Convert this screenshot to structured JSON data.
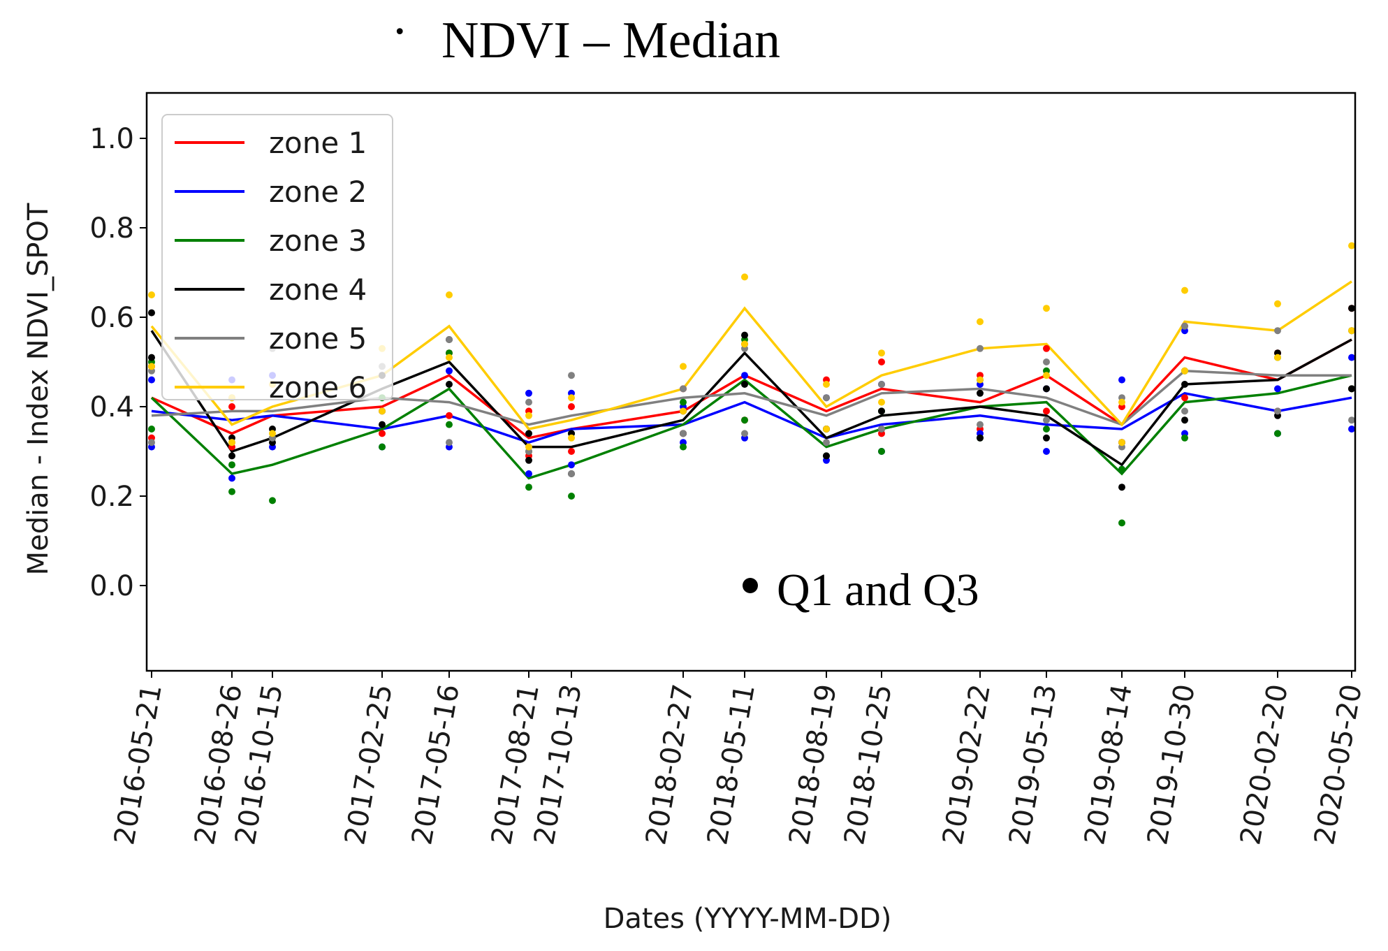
{
  "chart_data": {
    "type": "line",
    "title": "NDVI – Median",
    "title_prefix": ".",
    "xlabel": "Dates (YYYY-MM-DD)",
    "ylabel": "Median - Index NDVI_SPOT",
    "ylim": [
      -0.2,
      1.1
    ],
    "yticks": [
      0.0,
      0.2,
      0.4,
      0.6,
      0.8,
      1.0
    ],
    "ytick_labels": [
      "0.0",
      "0.2",
      "0.4",
      "0.6",
      "0.8",
      "1.0"
    ],
    "legend_position": "top-left",
    "annotation": "Q1 and Q3",
    "annotation_marker_color": "#000000",
    "x_dates": [
      "2016-05-21",
      "2016-08-26",
      "2016-10-15",
      "2017-02-25",
      "2017-05-16",
      "2017-08-21",
      "2017-10-13",
      "2018-02-27",
      "2018-05-11",
      "2018-08-19",
      "2018-10-25",
      "2019-02-22",
      "2019-05-13",
      "2019-08-14",
      "2019-10-30",
      "2020-02-20",
      "2020-05-20"
    ],
    "series": [
      {
        "name": "zone 1",
        "color": "#ff0000",
        "values": [
          0.42,
          0.34,
          0.38,
          0.4,
          0.47,
          0.33,
          0.35,
          0.39,
          0.47,
          0.39,
          0.44,
          0.41,
          0.47,
          0.36,
          0.51,
          0.46,
          0.55
        ],
        "q1": [
          0.33,
          0.31,
          0.33,
          0.34,
          0.38,
          0.29,
          0.3,
          0.34,
          0.37,
          0.35,
          0.34,
          0.35,
          0.39,
          0.32,
          0.42,
          0.39,
          0.44
        ],
        "q3": [
          0.49,
          0.4,
          0.45,
          0.47,
          0.52,
          0.39,
          0.4,
          0.44,
          0.54,
          0.46,
          0.5,
          0.47,
          0.53,
          0.4,
          0.58,
          0.52,
          0.62
        ]
      },
      {
        "name": "zone 2",
        "color": "#0000ff",
        "values": [
          0.39,
          0.37,
          0.38,
          0.35,
          0.38,
          0.32,
          0.35,
          0.36,
          0.41,
          0.33,
          0.36,
          0.38,
          0.36,
          0.35,
          0.43,
          0.39,
          0.42
        ],
        "q1": [
          0.31,
          0.24,
          0.31,
          0.31,
          0.31,
          0.25,
          0.27,
          0.32,
          0.33,
          0.28,
          0.3,
          0.34,
          0.3,
          0.26,
          0.34,
          0.34,
          0.35
        ],
        "q3": [
          0.46,
          0.46,
          0.47,
          0.39,
          0.48,
          0.43,
          0.43,
          0.4,
          0.47,
          0.42,
          0.45,
          0.45,
          0.44,
          0.46,
          0.57,
          0.44,
          0.51
        ]
      },
      {
        "name": "zone 3",
        "color": "#008000",
        "values": [
          0.42,
          0.25,
          0.27,
          0.35,
          0.44,
          0.24,
          0.27,
          0.36,
          0.46,
          0.31,
          0.35,
          0.4,
          0.41,
          0.25,
          0.41,
          0.43,
          0.47
        ],
        "q1": [
          0.35,
          0.21,
          0.19,
          0.31,
          0.36,
          0.22,
          0.2,
          0.31,
          0.37,
          0.29,
          0.3,
          0.33,
          0.35,
          0.14,
          0.33,
          0.34,
          0.44
        ],
        "q3": [
          0.5,
          0.27,
          0.33,
          0.42,
          0.52,
          0.3,
          0.34,
          0.41,
          0.55,
          0.35,
          0.39,
          0.46,
          0.48,
          0.26,
          0.48,
          0.51,
          0.57
        ]
      },
      {
        "name": "zone 4",
        "color": "#000000",
        "values": [
          0.57,
          0.3,
          0.33,
          0.44,
          0.5,
          0.31,
          0.31,
          0.37,
          0.52,
          0.33,
          0.38,
          0.4,
          0.38,
          0.27,
          0.45,
          0.46,
          0.55
        ],
        "q1": [
          0.51,
          0.29,
          0.32,
          0.36,
          0.45,
          0.28,
          0.25,
          0.34,
          0.45,
          0.29,
          0.35,
          0.33,
          0.33,
          0.22,
          0.37,
          0.38,
          0.44
        ],
        "q3": [
          0.61,
          0.33,
          0.35,
          0.47,
          0.55,
          0.34,
          0.34,
          0.39,
          0.56,
          0.35,
          0.39,
          0.43,
          0.44,
          0.32,
          0.45,
          0.52,
          0.62
        ]
      },
      {
        "name": "zone 5",
        "color": "#808080",
        "values": [
          0.38,
          0.39,
          0.39,
          0.42,
          0.41,
          0.36,
          0.38,
          0.42,
          0.43,
          0.38,
          0.43,
          0.44,
          0.42,
          0.36,
          0.48,
          0.47,
          0.47
        ],
        "q1": [
          0.32,
          0.32,
          0.33,
          0.39,
          0.32,
          0.3,
          0.25,
          0.34,
          0.34,
          0.32,
          0.35,
          0.36,
          0.37,
          0.31,
          0.39,
          0.39,
          0.37
        ],
        "q3": [
          0.48,
          0.42,
          0.53,
          0.49,
          0.55,
          0.41,
          0.47,
          0.44,
          0.53,
          0.42,
          0.45,
          0.53,
          0.5,
          0.42,
          0.58,
          0.57,
          0.57
        ]
      },
      {
        "name": "zone 6",
        "color": "#ffcc00",
        "values": [
          0.58,
          0.36,
          0.4,
          0.47,
          0.58,
          0.35,
          0.37,
          0.44,
          0.62,
          0.4,
          0.47,
          0.53,
          0.54,
          0.36,
          0.59,
          0.57,
          0.68
        ],
        "q1": [
          0.49,
          0.32,
          0.34,
          0.39,
          0.51,
          0.31,
          0.33,
          0.39,
          0.54,
          0.35,
          0.41,
          0.46,
          0.47,
          0.32,
          0.48,
          0.51,
          0.57
        ],
        "q3": [
          0.65,
          0.42,
          0.45,
          0.53,
          0.65,
          0.38,
          0.42,
          0.49,
          0.69,
          0.45,
          0.52,
          0.59,
          0.62,
          0.41,
          0.66,
          0.63,
          0.76
        ]
      }
    ]
  }
}
